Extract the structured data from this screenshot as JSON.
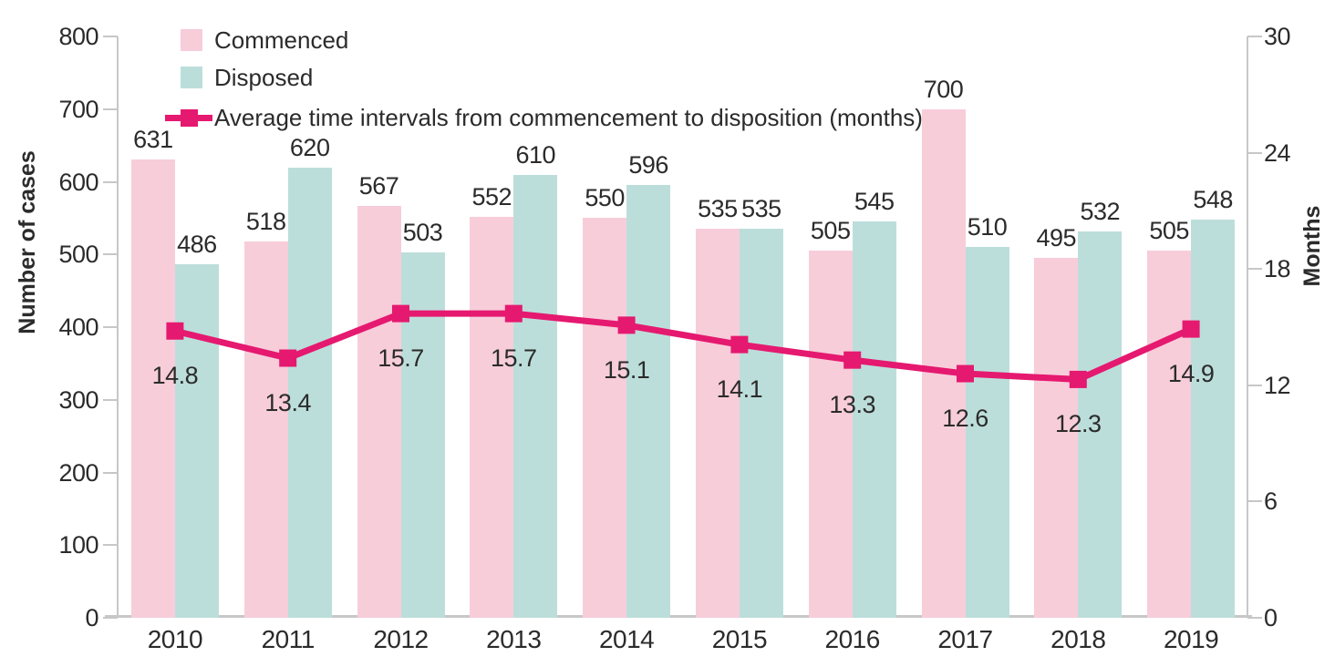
{
  "chart_data": {
    "type": "bar",
    "subtype": "grouped-bars-with-line-overlay",
    "title": "",
    "categories": [
      "2010",
      "2011",
      "2012",
      "2013",
      "2014",
      "2015",
      "2016",
      "2017",
      "2018",
      "2019"
    ],
    "series": [
      {
        "name": "Commenced",
        "type": "bar",
        "axis": "left",
        "color": "#F7CDDA",
        "values": [
          631,
          518,
          567,
          552,
          550,
          535,
          505,
          700,
          495,
          505
        ]
      },
      {
        "name": "Disposed",
        "type": "bar",
        "axis": "left",
        "color": "#BCDEDB",
        "values": [
          486,
          620,
          503,
          610,
          596,
          535,
          545,
          510,
          532,
          548
        ]
      },
      {
        "name": "Average time intervals from commencement to disposition (months)",
        "type": "line",
        "axis": "right",
        "color": "#E5196F",
        "values": [
          14.8,
          13.4,
          15.7,
          15.7,
          15.1,
          14.1,
          13.3,
          12.6,
          12.3,
          14.9
        ]
      }
    ],
    "left_axis": {
      "title": "Number of cases",
      "min": 0,
      "max": 800,
      "ticks": [
        0,
        100,
        200,
        300,
        400,
        500,
        600,
        700,
        800
      ]
    },
    "right_axis": {
      "title": "Months",
      "min": 0,
      "max": 30,
      "ticks": [
        0,
        6,
        12,
        18,
        24,
        30
      ]
    },
    "xlabel": "",
    "legend_position": "top-left",
    "grid": false,
    "data_labels": true
  },
  "colors": {
    "axis_line": "#C7C7C7",
    "text": "#2B2B2B"
  }
}
